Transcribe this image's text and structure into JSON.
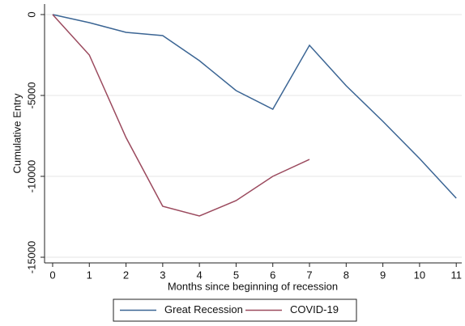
{
  "chart_data": {
    "type": "line",
    "x_label": "Months since beginning of recession",
    "y_label": "Cumulative Entry",
    "x": [
      0,
      1,
      2,
      3,
      4,
      5,
      6,
      7,
      8,
      9,
      10,
      11
    ],
    "series": [
      {
        "name": "Great Recession",
        "color": "#3b6594",
        "values": [
          0,
          -500,
          -1100,
          -1300,
          -2850,
          -4700,
          -5850,
          -1900,
          -4400,
          -6600,
          -8900,
          -11350
        ]
      },
      {
        "name": "COVID-19",
        "color": "#9b4a5e",
        "values": [
          0,
          -2500,
          -7600,
          -11850,
          -12450,
          -11500,
          -10000,
          -8950,
          null,
          null,
          null,
          null
        ]
      }
    ],
    "xlim": [
      -0.22,
      11.15
    ],
    "xticks": [
      0,
      1,
      2,
      3,
      4,
      5,
      6,
      7,
      8,
      9,
      10,
      11
    ],
    "ylim": [
      -15350,
      650
    ],
    "yticks": [
      -15000,
      -10000,
      -5000,
      0
    ],
    "grid": true,
    "legend": "bottom"
  }
}
